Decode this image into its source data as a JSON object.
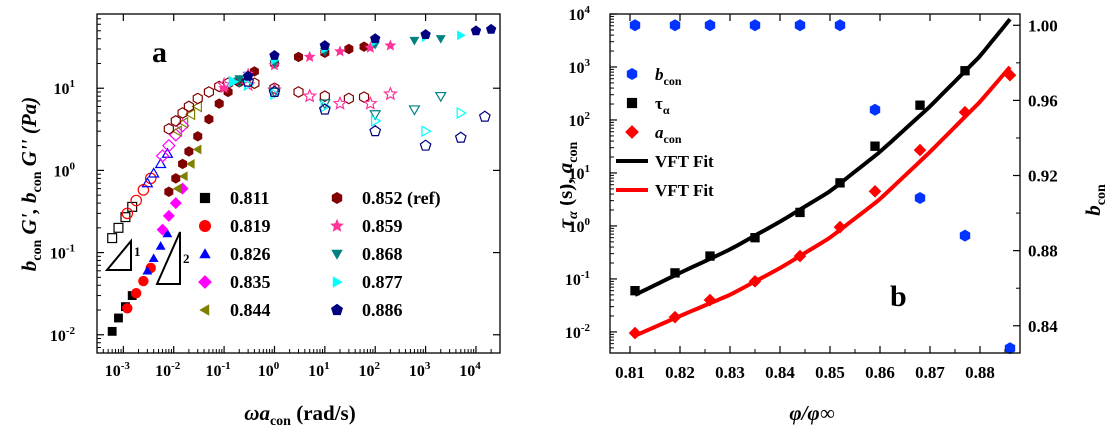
{
  "chart_data": [
    {
      "panel_label": "a",
      "type": "scatter",
      "xlabel": "ωa",
      "xlabel_sub": "con",
      "xlabel_unit": " (rad/s)",
      "ylabel_parts": [
        "b",
        "con",
        " G', b",
        "con",
        " G'' (Pa)"
      ],
      "x_scale": "log",
      "y_scale": "log",
      "xlim": [
        0.0003,
        30000
      ],
      "ylim": [
        0.006,
        80
      ],
      "x_ticks": [
        {
          "v": 0.001,
          "label": "10",
          "exp": "-3"
        },
        {
          "v": 0.01,
          "label": "10",
          "exp": "-2"
        },
        {
          "v": 0.1,
          "label": "10",
          "exp": "-1"
        },
        {
          "v": 1,
          "label": "10",
          "exp": "0"
        },
        {
          "v": 10,
          "label": "10",
          "exp": "1"
        },
        {
          "v": 100,
          "label": "10",
          "exp": "2"
        },
        {
          "v": 1000,
          "label": "10",
          "exp": "3"
        },
        {
          "v": 10000,
          "label": "10",
          "exp": "4"
        }
      ],
      "y_ticks": [
        {
          "v": 0.01,
          "label": "10",
          "exp": "-2"
        },
        {
          "v": 0.1,
          "label": "10",
          "exp": "-1"
        },
        {
          "v": 1,
          "label": "10",
          "exp": "0"
        },
        {
          "v": 10,
          "label": "10",
          "exp": "1"
        }
      ],
      "slope_labels": [
        "1",
        "2"
      ],
      "legend": "inside, two columns",
      "series": [
        {
          "name": "0.811",
          "color": "#000000",
          "marker": "square",
          "gp": [
            [
              0.0006,
              0.011
            ],
            [
              0.0008,
              0.016
            ],
            [
              0.0011,
              0.022
            ],
            [
              0.0015,
              0.03
            ]
          ],
          "gpp": [
            [
              0.0006,
              0.15
            ],
            [
              0.0008,
              0.2
            ],
            [
              0.0011,
              0.27
            ],
            [
              0.0015,
              0.36
            ]
          ]
        },
        {
          "name": "0.819",
          "color": "#ff0000",
          "marker": "circle",
          "gp": [
            [
              0.0012,
              0.021
            ],
            [
              0.0018,
              0.032
            ],
            [
              0.0025,
              0.045
            ],
            [
              0.0035,
              0.065
            ]
          ],
          "gpp": [
            [
              0.0012,
              0.3
            ],
            [
              0.0018,
              0.43
            ],
            [
              0.0025,
              0.58
            ],
            [
              0.0035,
              0.8
            ]
          ]
        },
        {
          "name": "0.826",
          "color": "#0000ff",
          "marker": "triangle-up",
          "gp": [
            [
              0.003,
              0.06
            ],
            [
              0.004,
              0.085
            ],
            [
              0.0055,
              0.12
            ],
            [
              0.0075,
              0.17
            ]
          ],
          "gpp": [
            [
              0.003,
              0.7
            ],
            [
              0.004,
              0.92
            ],
            [
              0.0055,
              1.2
            ],
            [
              0.0075,
              1.6
            ]
          ]
        },
        {
          "name": "0.835",
          "color": "#ff00ff",
          "marker": "diamond",
          "gp": [
            [
              0.006,
              0.19
            ],
            [
              0.008,
              0.28
            ],
            [
              0.011,
              0.4
            ],
            [
              0.015,
              0.6
            ]
          ],
          "gpp": [
            [
              0.006,
              1.5
            ],
            [
              0.008,
              2.0
            ],
            [
              0.011,
              2.7
            ],
            [
              0.015,
              3.5
            ]
          ]
        },
        {
          "name": "0.844",
          "color": "#808000",
          "marker": "triangle-left",
          "gp": [
            [
              0.012,
              0.6
            ],
            [
              0.016,
              0.85
            ],
            [
              0.022,
              1.2
            ],
            [
              0.03,
              1.8
            ]
          ],
          "gpp": [
            [
              0.012,
              3.0
            ],
            [
              0.016,
              3.8
            ],
            [
              0.022,
              4.8
            ],
            [
              0.03,
              6.0
            ]
          ]
        },
        {
          "name": "0.852 (ref)",
          "color": "#800000",
          "marker": "hexagon",
          "gp": [
            [
              0.008,
              0.55
            ],
            [
              0.011,
              0.8
            ],
            [
              0.015,
              1.2
            ],
            [
              0.02,
              1.7
            ],
            [
              0.03,
              2.6
            ],
            [
              0.05,
              4.2
            ],
            [
              0.08,
              6.5
            ],
            [
              0.12,
              9.0
            ],
            [
              0.2,
              12
            ],
            [
              0.4,
              16
            ],
            [
              1,
              20
            ],
            [
              3,
              24
            ],
            [
              10,
              27
            ],
            [
              30,
              30
            ],
            [
              60,
              32
            ]
          ],
          "gpp": [
            [
              0.008,
              3.2
            ],
            [
              0.011,
              4.0
            ],
            [
              0.015,
              5.0
            ],
            [
              0.02,
              6.0
            ],
            [
              0.03,
              7.5
            ],
            [
              0.05,
              9.0
            ],
            [
              0.08,
              10.5
            ],
            [
              0.12,
              11.5
            ],
            [
              0.2,
              12
            ],
            [
              0.4,
              11.5
            ],
            [
              1,
              10
            ],
            [
              3,
              9
            ],
            [
              10,
              8
            ],
            [
              30,
              7.5
            ],
            [
              60,
              7.8
            ]
          ]
        },
        {
          "name": "0.859",
          "color": "#ff3399",
          "marker": "star",
          "gp": [
            [
              0.1,
              10
            ],
            [
              0.3,
              15
            ],
            [
              1,
              19
            ],
            [
              5,
              24
            ],
            [
              20,
              28
            ],
            [
              80,
              31
            ],
            [
              200,
              33
            ]
          ],
          "gpp": [
            [
              0.1,
              11
            ],
            [
              0.3,
              11
            ],
            [
              1,
              9.5
            ],
            [
              5,
              8
            ],
            [
              20,
              6.5
            ],
            [
              80,
              6.5
            ],
            [
              200,
              8.5
            ]
          ]
        },
        {
          "name": "0.868",
          "color": "#008080",
          "marker": "triangle-down",
          "gp": [
            [
              0.2,
              13
            ],
            [
              1,
              20
            ],
            [
              10,
              28
            ],
            [
              100,
              34
            ],
            [
              600,
              38
            ],
            [
              2000,
              40
            ]
          ],
          "gpp": [
            [
              0.2,
              12
            ],
            [
              1,
              9
            ],
            [
              10,
              6.5
            ],
            [
              100,
              4.8
            ],
            [
              600,
              5.5
            ],
            [
              2000,
              8
            ]
          ]
        },
        {
          "name": "0.877",
          "color": "#00ffff",
          "marker": "triangle-right",
          "gp": [
            [
              0.15,
              12
            ],
            [
              0.3,
              14
            ],
            [
              1,
              22
            ],
            [
              10,
              30
            ],
            [
              100,
              37
            ],
            [
              1000,
              42
            ],
            [
              5000,
              44
            ]
          ],
          "gpp": [
            [
              0.15,
              12
            ],
            [
              0.3,
              11
            ],
            [
              1,
              8.5
            ],
            [
              10,
              6
            ],
            [
              100,
              4
            ],
            [
              1000,
              3
            ],
            [
              5000,
              5
            ]
          ]
        },
        {
          "name": "0.886",
          "color": "#000080",
          "marker": "pentagon",
          "gp": [
            [
              0.3,
              14
            ],
            [
              1,
              25
            ],
            [
              10,
              33
            ],
            [
              100,
              40
            ],
            [
              1000,
              45
            ],
            [
              10000,
              50
            ],
            [
              20000,
              52
            ]
          ],
          "gpp": [
            [
              0.3,
              12
            ],
            [
              1,
              9
            ],
            [
              10,
              5.5
            ],
            [
              100,
              3
            ],
            [
              1000,
              2
            ],
            [
              5000,
              2.5
            ],
            [
              15000,
              4.5
            ]
          ]
        }
      ]
    },
    {
      "panel_label": "b",
      "type": "scatter",
      "xlabel": "φ/φ∞",
      "ylabel_left_parts": [
        "τ",
        "α",
        " (s), ",
        "a",
        "con"
      ],
      "ylabel_right_parts": [
        "b",
        "con"
      ],
      "y_scale_left": "log",
      "xlim": [
        0.806,
        0.888
      ],
      "ylim_left": [
        0.004,
        10000
      ],
      "ylim_right": [
        0.8255,
        1.006
      ],
      "x_ticks": [
        "0.81",
        "0.82",
        "0.83",
        "0.84",
        "0.85",
        "0.86",
        "0.87",
        "0.88"
      ],
      "y_ticks_left": [
        {
          "v": 0.01,
          "label": "10",
          "exp": "-2"
        },
        {
          "v": 0.1,
          "label": "10",
          "exp": "-1"
        },
        {
          "v": 1,
          "label": "10",
          "exp": "0"
        },
        {
          "v": 10,
          "label": "10",
          "exp": "1"
        },
        {
          "v": 100,
          "label": "10",
          "exp": "2"
        },
        {
          "v": 1000,
          "label": "10",
          "exp": "3"
        },
        {
          "v": 10000,
          "label": "10",
          "exp": "4"
        }
      ],
      "y_ticks_right": [
        "0.84",
        "0.88",
        "0.92",
        "0.96",
        "1.00"
      ],
      "legend": [
        {
          "label": "b",
          "sub": "con",
          "italic": true,
          "color": "#0033ff",
          "marker": "hexagon"
        },
        {
          "label": "τ",
          "sub": "α",
          "italic": false,
          "color": "#000000",
          "marker": "square"
        },
        {
          "label": "a",
          "sub": "con",
          "italic": true,
          "color": "#ff0000",
          "marker": "diamond"
        },
        {
          "label": "VFT Fit",
          "sub": "",
          "italic": false,
          "color": "#000000",
          "marker": "line"
        },
        {
          "label": "VFT Fit",
          "sub": "",
          "italic": false,
          "color": "#ff0000",
          "marker": "line"
        }
      ],
      "series": [
        {
          "name": "b_con",
          "axis": "right",
          "color": "#0033ff",
          "marker": "hexagon",
          "x": [
            0.811,
            0.819,
            0.826,
            0.835,
            0.844,
            0.852,
            0.859,
            0.868,
            0.877,
            0.886
          ],
          "y": [
            1.0,
            1.0,
            1.0,
            1.0,
            1.0,
            1.0,
            0.955,
            0.908,
            0.888,
            0.828
          ]
        },
        {
          "name": "τ_α",
          "axis": "left",
          "color": "#000000",
          "marker": "square",
          "x": [
            0.811,
            0.819,
            0.826,
            0.835,
            0.844,
            0.852,
            0.859,
            0.868,
            0.877
          ],
          "y": [
            0.06,
            0.13,
            0.27,
            0.6,
            1.8,
            6.5,
            32,
            190,
            850
          ]
        },
        {
          "name": "a_con",
          "axis": "left",
          "color": "#ff0000",
          "marker": "diamond",
          "x": [
            0.811,
            0.819,
            0.826,
            0.835,
            0.844,
            0.852,
            0.859,
            0.868,
            0.877,
            0.886
          ],
          "y": [
            0.0095,
            0.019,
            0.04,
            0.09,
            0.27,
            0.95,
            4.5,
            27,
            140,
            700
          ]
        },
        {
          "name": "VFT Fit (τ_α)",
          "axis": "left",
          "color": "#000000",
          "marker": "line",
          "x": [
            0.811,
            0.82,
            0.83,
            0.84,
            0.85,
            0.86,
            0.87,
            0.88,
            0.886
          ],
          "y": [
            0.05,
            0.13,
            0.36,
            1.2,
            4.5,
            25,
            180,
            1600,
            8000
          ]
        },
        {
          "name": "VFT Fit (a_con)",
          "axis": "left",
          "color": "#ff0000",
          "marker": "line",
          "x": [
            0.811,
            0.82,
            0.83,
            0.84,
            0.85,
            0.86,
            0.87,
            0.88,
            0.886
          ],
          "y": [
            0.0085,
            0.02,
            0.05,
            0.16,
            0.6,
            3.2,
            25,
            220,
            1000
          ]
        }
      ]
    }
  ]
}
